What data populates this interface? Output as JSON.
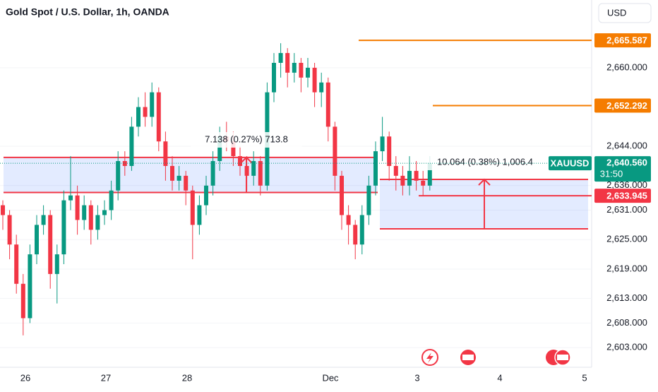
{
  "header": {
    "title": "Gold Spot / U.S. Dollar, 1h, OANDA",
    "currency": "USD"
  },
  "chart_data": {
    "type": "candlestick",
    "categories": [
      "26",
      "27",
      "28",
      "Dec",
      "3",
      "4",
      "5"
    ],
    "ylim": [
      2599,
      2673.8
    ],
    "yticks": [
      {
        "value": 2660,
        "label": "2,660.000"
      },
      {
        "value": 2644,
        "label": "2,644.000"
      },
      {
        "value": 2636,
        "label": "2,636.000"
      },
      {
        "value": 2631,
        "label": "2,631.000"
      },
      {
        "value": 2625,
        "label": "2,625.000"
      },
      {
        "value": 2619,
        "label": "2,619.000"
      },
      {
        "value": 2613,
        "label": "2,613.000"
      },
      {
        "value": 2608,
        "label": "2,608.000"
      },
      {
        "value": 2603,
        "label": "2,603.000"
      }
    ],
    "up_color": "#089981",
    "down_color": "#f23645",
    "open": [
      2632,
      2630,
      2624,
      2616,
      2609,
      2622,
      2628,
      2630,
      2618,
      2622,
      2633,
      2634,
      2629,
      2632,
      2627,
      2630,
      2631,
      2635,
      2641,
      2640,
      2648,
      2652,
      2650,
      2655,
      2645,
      2640,
      2637,
      2638,
      2635,
      2628,
      2632,
      2636,
      2641,
      2646,
      2645,
      2642,
      2640,
      2638,
      2641,
      2636,
      2655,
      2661,
      2663,
      2659,
      2661,
      2658,
      2660,
      2655,
      2657,
      2648,
      2638,
      2630,
      2628,
      2624,
      2630,
      2636,
      2643,
      2646,
      2640,
      2638,
      2636,
      2639,
      2637,
      2636
    ],
    "high": [
      2633,
      2631,
      2626,
      2618,
      2624,
      2630,
      2632,
      2631,
      2624,
      2635,
      2642,
      2636,
      2634,
      2633,
      2632,
      2633,
      2637,
      2643,
      2643,
      2650,
      2654,
      2655,
      2657,
      2656,
      2647,
      2642,
      2640,
      2639,
      2636,
      2634,
      2638,
      2643,
      2648,
      2649,
      2647,
      2644,
      2642,
      2643,
      2642,
      2657,
      2663,
      2665,
      2664,
      2663,
      2662,
      2662,
      2661,
      2659,
      2658,
      2649,
      2639,
      2632,
      2629,
      2632,
      2638,
      2645,
      2650,
      2647,
      2642,
      2640,
      2642,
      2641,
      2639,
      2642
    ],
    "low": [
      2627,
      2621,
      2614,
      2605.5,
      2608,
      2620,
      2626,
      2615,
      2612,
      2620,
      2631,
      2626,
      2627,
      2624,
      2625,
      2628,
      2629,
      2633,
      2638,
      2639,
      2646,
      2648,
      2648,
      2643,
      2637,
      2635,
      2635,
      2632,
      2621,
      2626,
      2630,
      2634,
      2639,
      2643,
      2640,
      2638,
      2635,
      2636,
      2634,
      2635,
      2653,
      2658,
      2656,
      2657,
      2655,
      2656,
      2652,
      2652,
      2645,
      2635,
      2627,
      2624,
      2621,
      2622,
      2628,
      2634,
      2641,
      2637,
      2635,
      2634,
      2634,
      2635,
      2634,
      2635
    ],
    "close": [
      2630,
      2624,
      2616,
      2609,
      2622,
      2628,
      2630,
      2618,
      2622,
      2633,
      2634,
      2629,
      2632,
      2627,
      2630,
      2631,
      2635,
      2641,
      2640,
      2648,
      2652,
      2650,
      2655,
      2645,
      2640,
      2637,
      2638,
      2635,
      2628,
      2632,
      2636,
      2641,
      2646,
      2645,
      2642,
      2640,
      2638,
      2641,
      2636,
      2655,
      2661,
      2663,
      2659,
      2661,
      2658,
      2660,
      2655,
      2657,
      2648,
      2638,
      2630,
      2628,
      2624,
      2630,
      2636,
      2643,
      2646,
      2640,
      2638,
      2636,
      2639,
      2637,
      2636,
      2640.56
    ],
    "hlines": {
      "values": [
        2665.587,
        2652.292
      ],
      "value_labels": [
        "2,665.587",
        "2,652.292"
      ],
      "color": "#f57c00"
    },
    "alert_line": {
      "value": 2633.945,
      "label": "2,633.945",
      "color": "#f23645"
    },
    "last_price": {
      "value": 2640.56,
      "label": "2,640.560",
      "symbol": "XAUUSD",
      "countdown": "31:50"
    },
    "zones": [
      {
        "top": 2641.738,
        "bottom": 2634.6
      },
      {
        "top": 2637.264,
        "bottom": 2627.2
      }
    ],
    "measures": [
      {
        "text": "7.138 (0.27%) 713.8"
      },
      {
        "text": "10.064 (0.38%) 1,006.4"
      }
    ]
  }
}
